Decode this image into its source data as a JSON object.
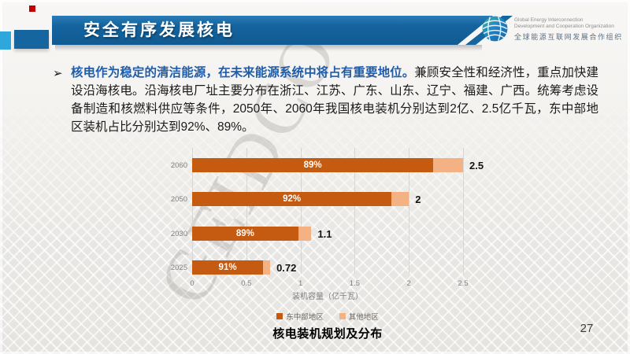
{
  "header": {
    "title": "安全有序发展核电",
    "logo": {
      "org_en_line1": "Global Energy Interconnection",
      "org_en_line2": "Development and Cooperation Organization",
      "org_zh": "全球能源互联网发展合作组织"
    }
  },
  "body": {
    "bullet": "➢",
    "lead_text": "核电作为稳定的清洁能源，在未来能源系统中将占有重要地位。",
    "text": "兼顾安全性和经济性，重点加快建设沿海核电。沿海核电厂址主要分布在浙江、江苏、广东、山东、辽宁、福建、广西。统筹考虑设备制造和核燃料供应等条件，2050年、2060年我国核电装机分别达到2亿、2.5亿千瓦，东中部地区装机占比分别达到92%、89%。"
  },
  "chart_data": {
    "type": "bar",
    "orientation": "horizontal",
    "stacked": true,
    "title": "核电装机规划及分布",
    "xlabel": "装机容量（亿千瓦）",
    "categories": [
      "2060",
      "2050",
      "2030",
      "2025"
    ],
    "totals": [
      2.5,
      2,
      1.1,
      0.72
    ],
    "total_labels": [
      "2.5",
      "2",
      "1.1",
      "0.72"
    ],
    "east_central_share": [
      0.89,
      0.92,
      0.89,
      0.91
    ],
    "share_labels": [
      "89%",
      "92%",
      "89%",
      "91%"
    ],
    "series": [
      {
        "name": "东中部地区",
        "color": "#C55A11",
        "values": [
          2.23,
          1.84,
          0.98,
          0.66
        ]
      },
      {
        "name": "其他地区",
        "color": "#F4B183",
        "values": [
          0.27,
          0.16,
          0.12,
          0.06
        ]
      }
    ],
    "xlim": [
      0,
      2.5
    ],
    "xticks": [
      0,
      0.5,
      1,
      1.5,
      2,
      2.5
    ],
    "xtick_labels": [
      "0",
      "0.5",
      "1",
      "1.5",
      "2",
      "2.5"
    ],
    "grid": true,
    "legend_position": "bottom"
  },
  "watermark": "GEIDCO",
  "page_number": "27",
  "colors": {
    "header_blue": "#15639E",
    "accent_light_blue": "#2EA7DD",
    "accent_red": "#C00000",
    "lead_text_blue": "#1F5CA9",
    "bar_dark_orange": "#C55A11",
    "bar_light_orange": "#F4B183",
    "background": "#F2F1EE"
  }
}
